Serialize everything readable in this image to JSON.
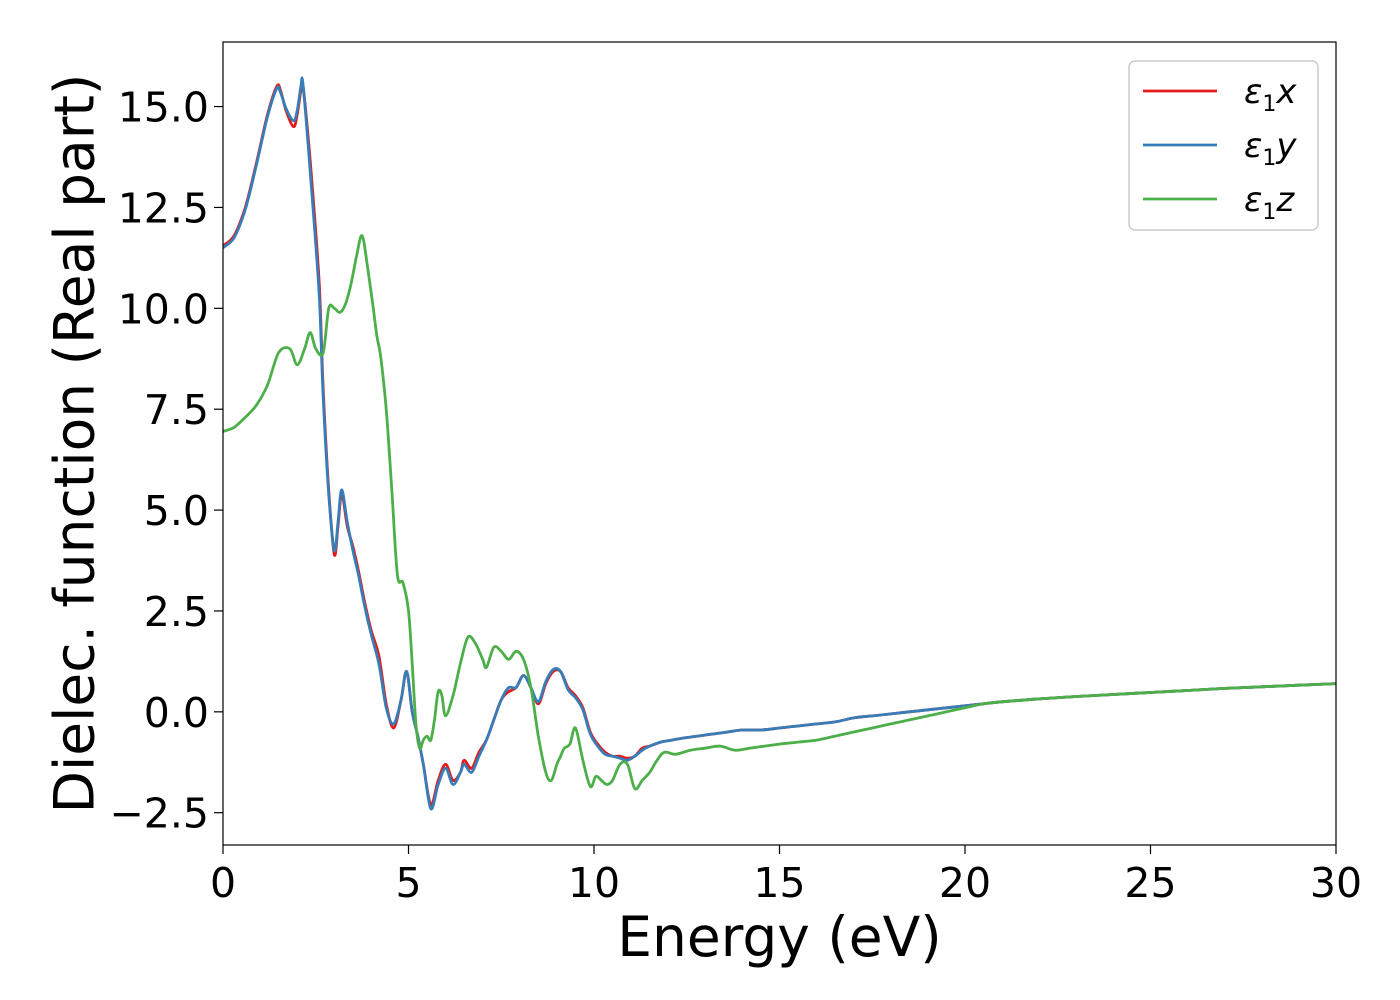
{
  "chart_data": {
    "type": "line",
    "xlabel": "Energy (eV)",
    "ylabel": "Dielec. function (Real part)",
    "xlim": [
      0,
      30
    ],
    "ylim": [
      -3.3,
      16.6
    ],
    "x_ticks": [
      0,
      5,
      10,
      15,
      20,
      25,
      30
    ],
    "x_tick_labels": [
      "0",
      "5",
      "10",
      "15",
      "20",
      "25",
      "30"
    ],
    "y_ticks": [
      -2.5,
      0.0,
      2.5,
      5.0,
      7.5,
      10.0,
      12.5,
      15.0
    ],
    "y_tick_labels": [
      "−2.5",
      "0.0",
      "2.5",
      "5.0",
      "7.5",
      "10.0",
      "12.5",
      "15.0"
    ],
    "grid": false,
    "legend_position": "top-right",
    "series": [
      {
        "name": "ε",
        "sub": "1",
        "suffix": "x",
        "color": "#e41a1c",
        "x": [
          0,
          0.3,
          0.6,
          0.9,
          1.2,
          1.45,
          1.55,
          1.7,
          1.9,
          2.0,
          2.1,
          2.15,
          2.3,
          2.45,
          2.6,
          2.7,
          2.85,
          3.0,
          3.1,
          3.2,
          3.35,
          3.5,
          3.65,
          3.8,
          4.0,
          4.2,
          4.4,
          4.6,
          4.8,
          4.95,
          5.1,
          5.25,
          5.4,
          5.6,
          5.8,
          6.0,
          6.2,
          6.4,
          6.5,
          6.7,
          6.9,
          7.1,
          7.3,
          7.5,
          7.7,
          7.9,
          8.1,
          8.3,
          8.5,
          8.7,
          8.9,
          9.1,
          9.3,
          9.5,
          9.7,
          9.9,
          10.1,
          10.3,
          10.5,
          10.7,
          10.9,
          11.1,
          11.3,
          11.5,
          11.8,
          12.1,
          12.4,
          12.8,
          13.2,
          13.6,
          14.0,
          14.5,
          15.0,
          15.5,
          16.0,
          16.5,
          17.0,
          17.5,
          18.0,
          18.5,
          19.0,
          19.5,
          20.0,
          20.5,
          21.0,
          22.0,
          23.0,
          24.0,
          25.0,
          26.0,
          27.0,
          28.0,
          29.0,
          30.0
        ],
        "y": [
          11.55,
          11.8,
          12.5,
          13.6,
          14.8,
          15.5,
          15.4,
          14.9,
          14.5,
          14.8,
          15.4,
          15.55,
          14.2,
          12.5,
          10.5,
          8.0,
          5.5,
          3.9,
          4.6,
          5.4,
          4.6,
          4.1,
          3.5,
          2.8,
          2.0,
          1.4,
          0.2,
          -0.4,
          0.3,
          1.0,
          0.0,
          -0.6,
          -1.3,
          -2.3,
          -1.7,
          -1.3,
          -1.7,
          -1.5,
          -1.2,
          -1.4,
          -1.0,
          -0.7,
          -0.2,
          0.3,
          0.5,
          0.6,
          0.9,
          0.6,
          0.2,
          0.7,
          1.0,
          1.0,
          0.6,
          0.4,
          0.1,
          -0.5,
          -0.8,
          -1.0,
          -1.1,
          -1.1,
          -1.15,
          -1.1,
          -0.9,
          -0.85,
          -0.75,
          -0.7,
          -0.65,
          -0.6,
          -0.55,
          -0.5,
          -0.45,
          -0.45,
          -0.4,
          -0.35,
          -0.3,
          -0.25,
          -0.15,
          -0.1,
          -0.05,
          0.0,
          0.05,
          0.1,
          0.15,
          0.2,
          0.25,
          0.32,
          0.38,
          0.43,
          0.48,
          0.53,
          0.58,
          0.62,
          0.66,
          0.7
        ]
      },
      {
        "name": "ε",
        "sub": "1",
        "suffix": "y",
        "color": "#377eb8",
        "x": [
          0,
          0.3,
          0.6,
          0.9,
          1.2,
          1.45,
          1.55,
          1.7,
          1.9,
          2.0,
          2.1,
          2.15,
          2.3,
          2.45,
          2.6,
          2.7,
          2.85,
          3.0,
          3.1,
          3.2,
          3.35,
          3.5,
          3.65,
          3.8,
          4.0,
          4.2,
          4.4,
          4.6,
          4.8,
          4.95,
          5.1,
          5.25,
          5.4,
          5.6,
          5.8,
          6.0,
          6.2,
          6.4,
          6.5,
          6.7,
          6.9,
          7.1,
          7.3,
          7.5,
          7.7,
          7.9,
          8.1,
          8.3,
          8.5,
          8.7,
          8.9,
          9.1,
          9.3,
          9.5,
          9.7,
          9.9,
          10.1,
          10.3,
          10.5,
          10.7,
          10.9,
          11.1,
          11.3,
          11.5,
          11.8,
          12.1,
          12.4,
          12.8,
          13.2,
          13.6,
          14.0,
          14.5,
          15.0,
          15.5,
          16.0,
          16.5,
          17.0,
          17.5,
          18.0,
          18.5,
          19.0,
          19.5,
          20.0,
          20.5,
          21.0,
          22.0,
          23.0,
          24.0,
          25.0,
          26.0,
          27.0,
          28.0,
          29.0,
          30.0
        ],
        "y": [
          11.5,
          11.75,
          12.45,
          13.55,
          14.75,
          15.45,
          15.35,
          14.95,
          14.65,
          14.9,
          15.5,
          15.6,
          14.0,
          12.2,
          10.2,
          7.8,
          5.4,
          4.0,
          4.7,
          5.5,
          4.7,
          4.0,
          3.4,
          2.7,
          1.9,
          1.2,
          0.1,
          -0.3,
          0.3,
          1.0,
          0.0,
          -0.6,
          -1.3,
          -2.4,
          -1.8,
          -1.4,
          -1.8,
          -1.5,
          -1.3,
          -1.5,
          -1.1,
          -0.7,
          -0.2,
          0.3,
          0.6,
          0.6,
          0.9,
          0.6,
          0.25,
          0.75,
          1.05,
          1.0,
          0.55,
          0.35,
          0.05,
          -0.55,
          -0.85,
          -1.05,
          -1.1,
          -1.15,
          -1.2,
          -1.1,
          -0.95,
          -0.85,
          -0.75,
          -0.7,
          -0.65,
          -0.6,
          -0.55,
          -0.5,
          -0.45,
          -0.45,
          -0.4,
          -0.35,
          -0.3,
          -0.25,
          -0.15,
          -0.1,
          -0.05,
          0.0,
          0.05,
          0.1,
          0.15,
          0.2,
          0.25,
          0.32,
          0.38,
          0.43,
          0.48,
          0.53,
          0.58,
          0.62,
          0.66,
          0.7
        ]
      },
      {
        "name": "ε",
        "sub": "1",
        "suffix": "z",
        "color": "#4daf4a",
        "x": [
          0,
          0.3,
          0.6,
          0.9,
          1.2,
          1.5,
          1.8,
          2.0,
          2.2,
          2.35,
          2.5,
          2.7,
          2.85,
          3.0,
          3.15,
          3.3,
          3.45,
          3.6,
          3.75,
          3.9,
          4.05,
          4.15,
          4.25,
          4.4,
          4.55,
          4.7,
          4.85,
          5.0,
          5.1,
          5.2,
          5.3,
          5.4,
          5.5,
          5.6,
          5.7,
          5.8,
          5.9,
          6.0,
          6.2,
          6.4,
          6.6,
          6.8,
          7.0,
          7.1,
          7.3,
          7.5,
          7.7,
          7.9,
          8.1,
          8.3,
          8.5,
          8.7,
          8.85,
          9.0,
          9.1,
          9.2,
          9.35,
          9.5,
          9.7,
          9.9,
          10.05,
          10.2,
          10.35,
          10.5,
          10.7,
          10.9,
          11.1,
          11.3,
          11.5,
          11.7,
          11.9,
          12.2,
          12.6,
          13.0,
          13.4,
          13.8,
          14.2,
          14.6,
          15.0,
          15.5,
          16.0,
          16.5,
          17.0,
          17.5,
          18.0,
          18.5,
          19.0,
          19.5,
          20.0,
          20.5,
          21.0,
          22.0,
          23.0,
          24.0,
          25.0,
          26.0,
          27.0,
          28.0,
          29.0,
          30.0
        ],
        "y": [
          6.95,
          7.05,
          7.3,
          7.6,
          8.1,
          8.9,
          9.0,
          8.6,
          9.0,
          9.4,
          9.0,
          8.9,
          10.0,
          10.0,
          9.9,
          10.1,
          10.6,
          11.3,
          11.8,
          11.0,
          10.0,
          9.3,
          8.8,
          7.5,
          5.5,
          3.4,
          3.2,
          2.5,
          1.2,
          -0.3,
          -0.9,
          -0.7,
          -0.6,
          -0.7,
          -0.2,
          0.5,
          0.4,
          -0.1,
          0.4,
          1.2,
          1.85,
          1.7,
          1.3,
          1.1,
          1.6,
          1.5,
          1.3,
          1.5,
          1.3,
          0.6,
          -0.6,
          -1.5,
          -1.7,
          -1.3,
          -1.1,
          -0.9,
          -0.8,
          -0.4,
          -1.2,
          -1.85,
          -1.6,
          -1.7,
          -1.8,
          -1.7,
          -1.3,
          -1.3,
          -1.9,
          -1.7,
          -1.5,
          -1.2,
          -1.0,
          -1.05,
          -0.95,
          -0.9,
          -0.85,
          -0.95,
          -0.9,
          -0.85,
          -0.8,
          -0.75,
          -0.7,
          -0.6,
          -0.5,
          -0.4,
          -0.3,
          -0.2,
          -0.1,
          0.0,
          0.1,
          0.2,
          0.25,
          0.32,
          0.38,
          0.43,
          0.48,
          0.53,
          0.58,
          0.62,
          0.66,
          0.7
        ]
      }
    ]
  }
}
